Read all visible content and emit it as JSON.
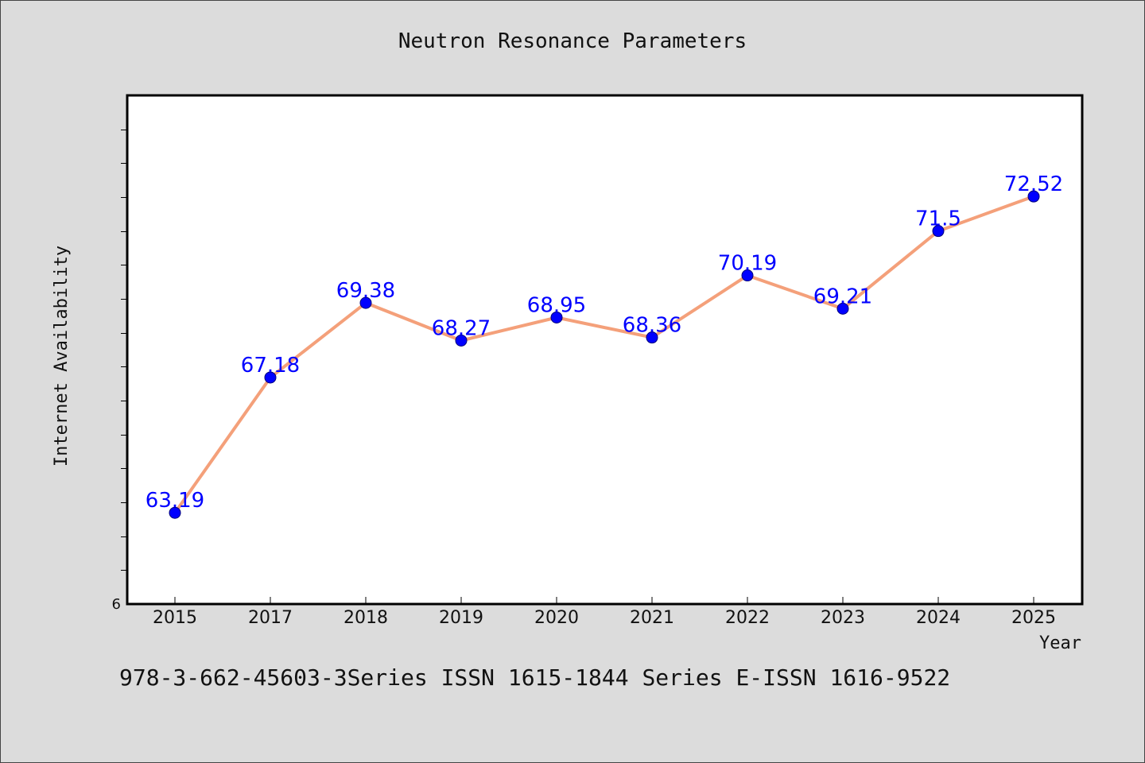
{
  "colors": {
    "background": "#dcdcdc",
    "plot_background": "#ffffff",
    "line": "#f4a07a",
    "marker": "#0000ff",
    "data_label": "#0000ff"
  },
  "chart_data": {
    "type": "line",
    "title": "Neutron Resonance Parameters",
    "xlabel": "Year",
    "ylabel": "Internet Availability",
    "categories": [
      "2015",
      "2017",
      "2018",
      "2019",
      "2020",
      "2021",
      "2022",
      "2023",
      "2024",
      "2025"
    ],
    "series": [
      {
        "values": [
          63.19,
          67.18,
          69.38,
          68.27,
          68.95,
          68.36,
          70.19,
          69.21,
          71.5,
          72.52
        ],
        "labels": [
          "63.19",
          "67.18",
          "69.38",
          "68.27",
          "68.95",
          "68.36",
          "70.19",
          "69.21",
          "71.5",
          "72.52"
        ]
      }
    ],
    "ylim": [
      60.5,
      75.5
    ],
    "yticks": [
      61.5,
      62.5,
      63.5,
      64.5,
      65.5,
      66.5,
      67.5,
      68.5,
      69.5,
      70.5,
      71.5,
      72.5,
      73.5,
      74.5
    ],
    "ytick_label_visible": "6",
    "grid": false,
    "legend": "none"
  },
  "footer": {
    "text": "978-3-662-45603-3Series ISSN 1615-1844 Series E-ISSN 1616-9522"
  }
}
